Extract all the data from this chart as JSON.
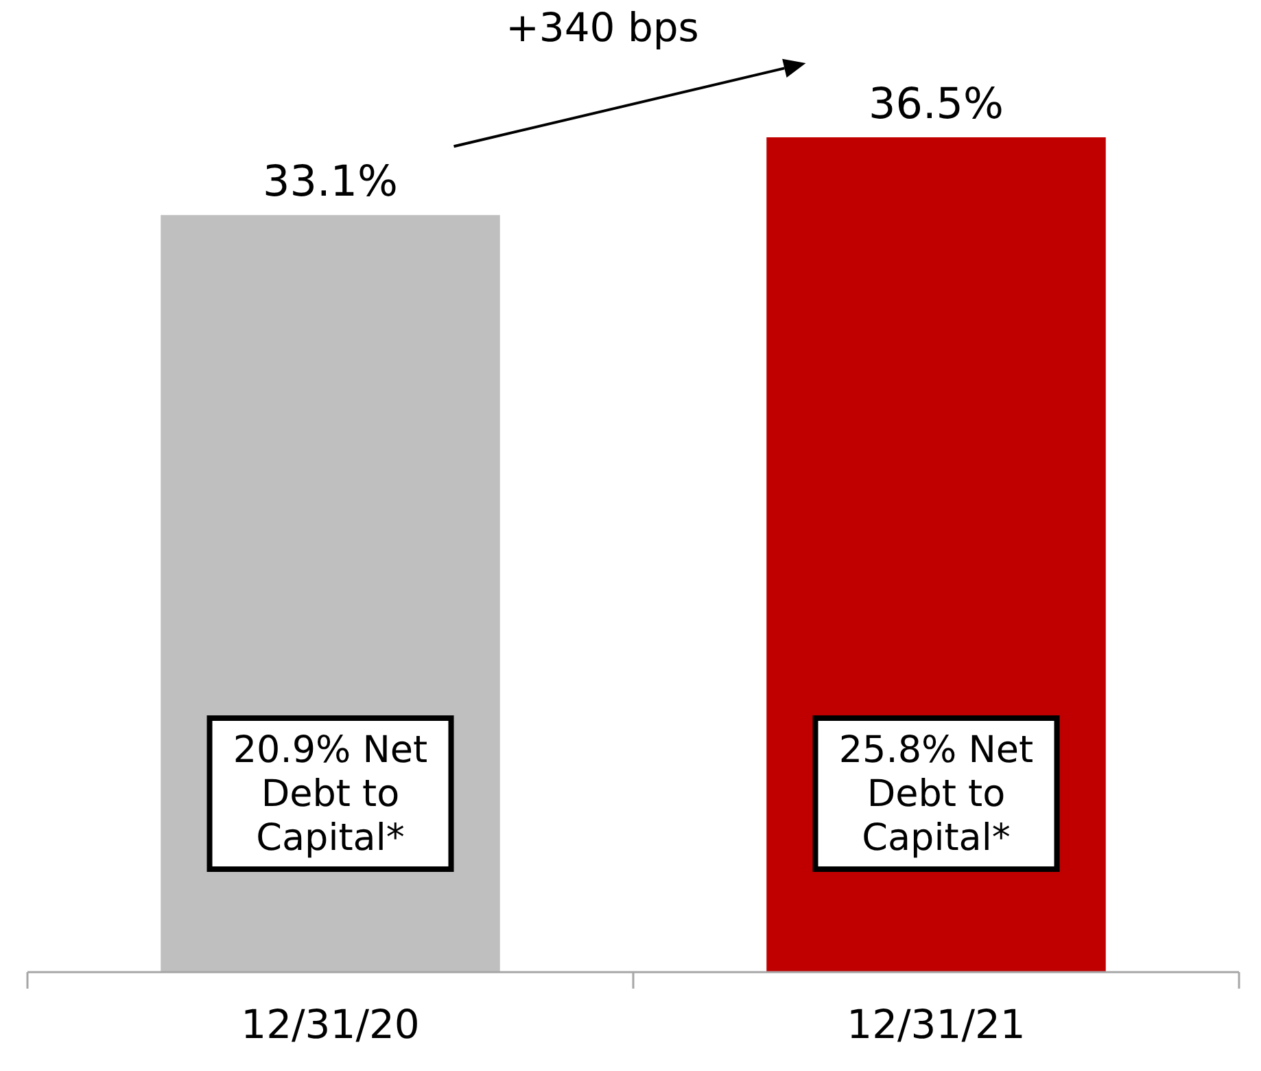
{
  "chart_data": {
    "type": "bar",
    "categories": [
      "12/31/20",
      "12/31/21"
    ],
    "values": [
      33.1,
      36.5
    ],
    "colors": [
      "#bfbfbf",
      "#c00000"
    ],
    "data_labels": true,
    "value_labels": [
      "33.1%",
      "36.5%"
    ],
    "annotations": [
      "+340 bps",
      "20.9% Net Debt to Capital*",
      "25.8% Net Debt to Capital*"
    ]
  }
}
